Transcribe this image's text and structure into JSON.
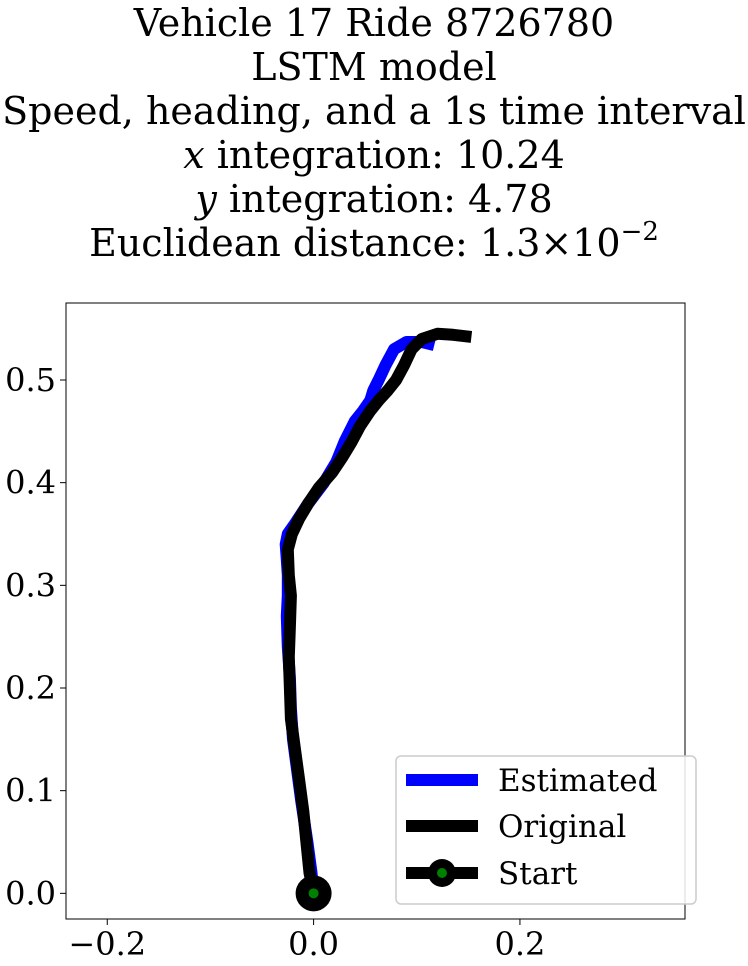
{
  "chart_data": {
    "type": "line",
    "title_lines": [
      "Vehicle 17 Ride 8726780",
      "LSTM model",
      "Speed, heading, and a 1s time interval"
    ],
    "metrics": {
      "x_label": "x",
      "x_text": " integration: 10.24",
      "y_label": "y",
      "y_text": " integration: 4.78",
      "dist_text": "Euclidean distance: 1.3",
      "dist_times": "×",
      "dist_base": "10",
      "dist_exp": "−2"
    },
    "xlim": [
      -0.24,
      0.36
    ],
    "ylim": [
      -0.025,
      0.575
    ],
    "x_ticks": [
      -0.2,
      0.0,
      0.2
    ],
    "x_tick_labels": [
      "−0.2",
      "0.0",
      "0.2"
    ],
    "y_ticks": [
      0.0,
      0.1,
      0.2,
      0.3,
      0.4,
      0.5
    ],
    "y_tick_labels": [
      "0.0",
      "0.1",
      "0.2",
      "0.3",
      "0.4",
      "0.5"
    ],
    "legend_position": "lower-right",
    "series": [
      {
        "name": "Estimated",
        "color": "#0000ff",
        "x": [
          0.0,
          -0.002,
          -0.006,
          -0.012,
          -0.016,
          -0.02,
          -0.022,
          -0.023,
          -0.025,
          -0.026,
          -0.025,
          -0.025,
          -0.026,
          -0.027,
          -0.025,
          -0.018,
          -0.005,
          0.01,
          0.022,
          0.03,
          0.04,
          0.048,
          0.055,
          0.058,
          0.063,
          0.07,
          0.078,
          0.09,
          0.105,
          0.117
        ],
        "y": [
          0.0,
          0.02,
          0.05,
          0.09,
          0.12,
          0.15,
          0.18,
          0.21,
          0.24,
          0.27,
          0.29,
          0.31,
          0.325,
          0.34,
          0.35,
          0.36,
          0.38,
          0.4,
          0.42,
          0.44,
          0.46,
          0.47,
          0.48,
          0.49,
          0.5,
          0.515,
          0.53,
          0.537,
          0.537,
          0.534
        ]
      },
      {
        "name": "Original",
        "color": "#000000",
        "x": [
          0.0,
          -0.004,
          -0.007,
          -0.01,
          -0.014,
          -0.018,
          -0.022,
          -0.023,
          -0.024,
          -0.023,
          -0.022,
          -0.024,
          -0.025,
          -0.021,
          -0.014,
          -0.005,
          0.005,
          0.018,
          0.028,
          0.037,
          0.045,
          0.055,
          0.063,
          0.072,
          0.08,
          0.088,
          0.095,
          0.105,
          0.12,
          0.135,
          0.153
        ],
        "y": [
          0.0,
          0.02,
          0.05,
          0.08,
          0.11,
          0.14,
          0.17,
          0.2,
          0.23,
          0.26,
          0.29,
          0.31,
          0.335,
          0.35,
          0.365,
          0.38,
          0.395,
          0.41,
          0.425,
          0.44,
          0.455,
          0.47,
          0.48,
          0.49,
          0.5,
          0.515,
          0.53,
          0.54,
          0.545,
          0.544,
          0.542
        ]
      }
    ],
    "start": {
      "name": "Start",
      "x": 0.0,
      "y": 0.0,
      "outer_color": "#000000",
      "inner_color": "#008000"
    }
  }
}
